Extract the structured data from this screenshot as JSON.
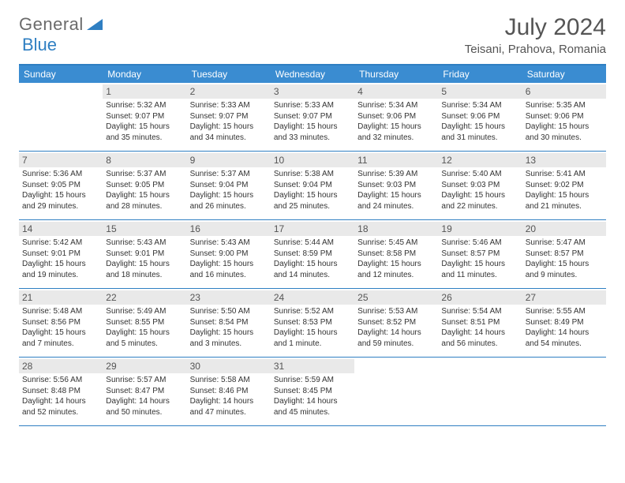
{
  "logo": {
    "word1": "General",
    "word2": "Blue"
  },
  "title": "July 2024",
  "location": "Teisani, Prahova, Romania",
  "colors": {
    "accent": "#3a8cd1",
    "rule": "#2f7fc2",
    "dayBg": "#e9e9e9",
    "text": "#333333",
    "muted": "#555555",
    "white": "#ffffff"
  },
  "dow": [
    "Sunday",
    "Monday",
    "Tuesday",
    "Wednesday",
    "Thursday",
    "Friday",
    "Saturday"
  ],
  "weeks": [
    [
      null,
      {
        "n": "1",
        "sr": "Sunrise: 5:32 AM",
        "ss": "Sunset: 9:07 PM",
        "d1": "Daylight: 15 hours",
        "d2": "and 35 minutes."
      },
      {
        "n": "2",
        "sr": "Sunrise: 5:33 AM",
        "ss": "Sunset: 9:07 PM",
        "d1": "Daylight: 15 hours",
        "d2": "and 34 minutes."
      },
      {
        "n": "3",
        "sr": "Sunrise: 5:33 AM",
        "ss": "Sunset: 9:07 PM",
        "d1": "Daylight: 15 hours",
        "d2": "and 33 minutes."
      },
      {
        "n": "4",
        "sr": "Sunrise: 5:34 AM",
        "ss": "Sunset: 9:06 PM",
        "d1": "Daylight: 15 hours",
        "d2": "and 32 minutes."
      },
      {
        "n": "5",
        "sr": "Sunrise: 5:34 AM",
        "ss": "Sunset: 9:06 PM",
        "d1": "Daylight: 15 hours",
        "d2": "and 31 minutes."
      },
      {
        "n": "6",
        "sr": "Sunrise: 5:35 AM",
        "ss": "Sunset: 9:06 PM",
        "d1": "Daylight: 15 hours",
        "d2": "and 30 minutes."
      }
    ],
    [
      {
        "n": "7",
        "sr": "Sunrise: 5:36 AM",
        "ss": "Sunset: 9:05 PM",
        "d1": "Daylight: 15 hours",
        "d2": "and 29 minutes."
      },
      {
        "n": "8",
        "sr": "Sunrise: 5:37 AM",
        "ss": "Sunset: 9:05 PM",
        "d1": "Daylight: 15 hours",
        "d2": "and 28 minutes."
      },
      {
        "n": "9",
        "sr": "Sunrise: 5:37 AM",
        "ss": "Sunset: 9:04 PM",
        "d1": "Daylight: 15 hours",
        "d2": "and 26 minutes."
      },
      {
        "n": "10",
        "sr": "Sunrise: 5:38 AM",
        "ss": "Sunset: 9:04 PM",
        "d1": "Daylight: 15 hours",
        "d2": "and 25 minutes."
      },
      {
        "n": "11",
        "sr": "Sunrise: 5:39 AM",
        "ss": "Sunset: 9:03 PM",
        "d1": "Daylight: 15 hours",
        "d2": "and 24 minutes."
      },
      {
        "n": "12",
        "sr": "Sunrise: 5:40 AM",
        "ss": "Sunset: 9:03 PM",
        "d1": "Daylight: 15 hours",
        "d2": "and 22 minutes."
      },
      {
        "n": "13",
        "sr": "Sunrise: 5:41 AM",
        "ss": "Sunset: 9:02 PM",
        "d1": "Daylight: 15 hours",
        "d2": "and 21 minutes."
      }
    ],
    [
      {
        "n": "14",
        "sr": "Sunrise: 5:42 AM",
        "ss": "Sunset: 9:01 PM",
        "d1": "Daylight: 15 hours",
        "d2": "and 19 minutes."
      },
      {
        "n": "15",
        "sr": "Sunrise: 5:43 AM",
        "ss": "Sunset: 9:01 PM",
        "d1": "Daylight: 15 hours",
        "d2": "and 18 minutes."
      },
      {
        "n": "16",
        "sr": "Sunrise: 5:43 AM",
        "ss": "Sunset: 9:00 PM",
        "d1": "Daylight: 15 hours",
        "d2": "and 16 minutes."
      },
      {
        "n": "17",
        "sr": "Sunrise: 5:44 AM",
        "ss": "Sunset: 8:59 PM",
        "d1": "Daylight: 15 hours",
        "d2": "and 14 minutes."
      },
      {
        "n": "18",
        "sr": "Sunrise: 5:45 AM",
        "ss": "Sunset: 8:58 PM",
        "d1": "Daylight: 15 hours",
        "d2": "and 12 minutes."
      },
      {
        "n": "19",
        "sr": "Sunrise: 5:46 AM",
        "ss": "Sunset: 8:57 PM",
        "d1": "Daylight: 15 hours",
        "d2": "and 11 minutes."
      },
      {
        "n": "20",
        "sr": "Sunrise: 5:47 AM",
        "ss": "Sunset: 8:57 PM",
        "d1": "Daylight: 15 hours",
        "d2": "and 9 minutes."
      }
    ],
    [
      {
        "n": "21",
        "sr": "Sunrise: 5:48 AM",
        "ss": "Sunset: 8:56 PM",
        "d1": "Daylight: 15 hours",
        "d2": "and 7 minutes."
      },
      {
        "n": "22",
        "sr": "Sunrise: 5:49 AM",
        "ss": "Sunset: 8:55 PM",
        "d1": "Daylight: 15 hours",
        "d2": "and 5 minutes."
      },
      {
        "n": "23",
        "sr": "Sunrise: 5:50 AM",
        "ss": "Sunset: 8:54 PM",
        "d1": "Daylight: 15 hours",
        "d2": "and 3 minutes."
      },
      {
        "n": "24",
        "sr": "Sunrise: 5:52 AM",
        "ss": "Sunset: 8:53 PM",
        "d1": "Daylight: 15 hours",
        "d2": "and 1 minute."
      },
      {
        "n": "25",
        "sr": "Sunrise: 5:53 AM",
        "ss": "Sunset: 8:52 PM",
        "d1": "Daylight: 14 hours",
        "d2": "and 59 minutes."
      },
      {
        "n": "26",
        "sr": "Sunrise: 5:54 AM",
        "ss": "Sunset: 8:51 PM",
        "d1": "Daylight: 14 hours",
        "d2": "and 56 minutes."
      },
      {
        "n": "27",
        "sr": "Sunrise: 5:55 AM",
        "ss": "Sunset: 8:49 PM",
        "d1": "Daylight: 14 hours",
        "d2": "and 54 minutes."
      }
    ],
    [
      {
        "n": "28",
        "sr": "Sunrise: 5:56 AM",
        "ss": "Sunset: 8:48 PM",
        "d1": "Daylight: 14 hours",
        "d2": "and 52 minutes."
      },
      {
        "n": "29",
        "sr": "Sunrise: 5:57 AM",
        "ss": "Sunset: 8:47 PM",
        "d1": "Daylight: 14 hours",
        "d2": "and 50 minutes."
      },
      {
        "n": "30",
        "sr": "Sunrise: 5:58 AM",
        "ss": "Sunset: 8:46 PM",
        "d1": "Daylight: 14 hours",
        "d2": "and 47 minutes."
      },
      {
        "n": "31",
        "sr": "Sunrise: 5:59 AM",
        "ss": "Sunset: 8:45 PM",
        "d1": "Daylight: 14 hours",
        "d2": "and 45 minutes."
      },
      null,
      null,
      null
    ]
  ]
}
